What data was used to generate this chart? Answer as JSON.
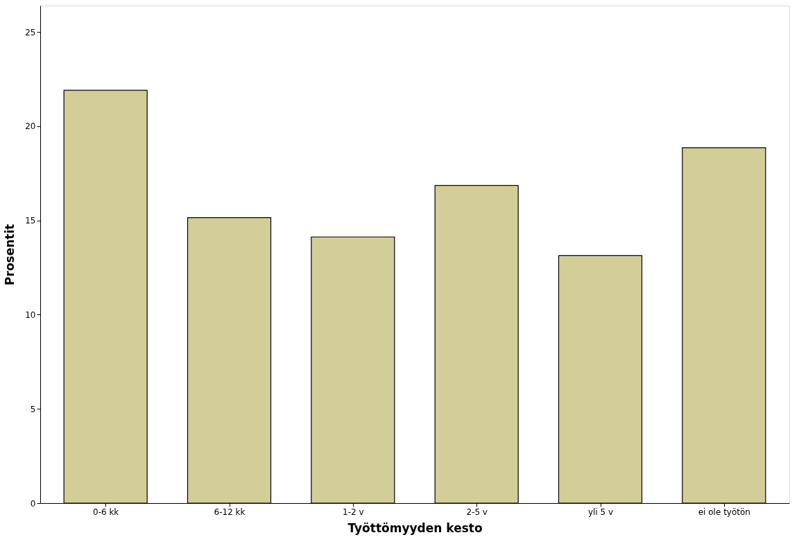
{
  "chart_data": {
    "type": "bar",
    "xlabel": "Työttömyyden kesto",
    "ylabel": "Prosentit",
    "categories": [
      "0-6 kk",
      "6-12 kk",
      "1-2 v",
      "2-5 v",
      "yli 5 v",
      "ei ole työtön"
    ],
    "values": [
      21.9,
      15.15,
      14.12,
      16.85,
      13.13,
      18.86
    ],
    "color": "#d3ce97",
    "ylim": [
      0,
      26.4
    ],
    "yticks": [
      0,
      5,
      10,
      15,
      20,
      25
    ],
    "grid": false
  }
}
